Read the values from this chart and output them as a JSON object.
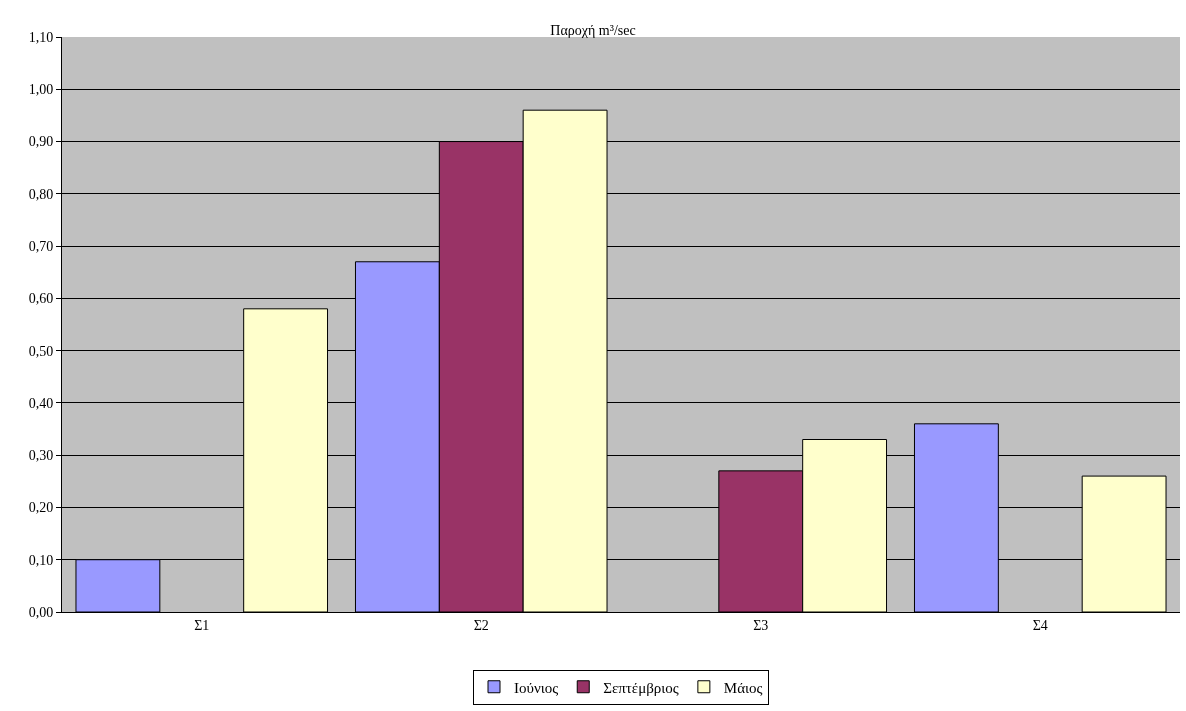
{
  "chart_data": {
    "type": "bar",
    "title": "Παροχή m³/sec",
    "categories": [
      "Σ1",
      "Σ2",
      "Σ3",
      "Σ4"
    ],
    "series": [
      {
        "name": "Ιούνιος",
        "color": "#9999ff",
        "values": [
          0.1,
          0.67,
          null,
          0.36
        ]
      },
      {
        "name": "Σεπτέμβριος",
        "color": "#993366",
        "values": [
          null,
          0.9,
          0.27,
          null
        ]
      },
      {
        "name": "Μάιος",
        "color": "#ffffcc",
        "values": [
          0.58,
          0.96,
          0.33,
          0.26
        ]
      }
    ],
    "ylim": [
      0,
      1.1
    ],
    "yticks": [
      {
        "value": 0,
        "label": "0,00"
      },
      {
        "value": 0.1,
        "label": "0,10"
      },
      {
        "value": 0.2,
        "label": "0,20"
      },
      {
        "value": 0.3,
        "label": "0,30"
      },
      {
        "value": 0.4,
        "label": "0,40"
      },
      {
        "value": 0.5,
        "label": "0,50"
      },
      {
        "value": 0.6,
        "label": "0,60"
      },
      {
        "value": 0.7,
        "label": "0,70"
      },
      {
        "value": 0.8,
        "label": "0,80"
      },
      {
        "value": 0.9,
        "label": "0,90"
      },
      {
        "value": 1.0,
        "label": "1,00"
      },
      {
        "value": 1.1,
        "label": "1,10"
      }
    ],
    "grid": "y",
    "legend": "bottom"
  }
}
